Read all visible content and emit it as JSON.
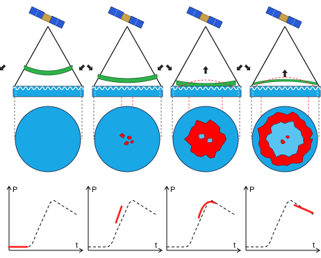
{
  "colors": {
    "water": "#1aa7e6",
    "water_edge": "#1f3b5a",
    "water_light": "#58c4f2",
    "ring": "#2db34a",
    "ring_edge": "#1f5f2a",
    "spread": "#ff0000",
    "spread_edge": "#8a0000",
    "curve": "#000000",
    "curve_highlight": "#ff1a1a",
    "guide": "#333333",
    "bulge": "#ff2020",
    "satellite_panel": "#2a5bd7",
    "satellite_body": "#c8a24a"
  },
  "icons": {
    "satellite": "satellite-icon",
    "arrow_out": "arrow-diagonal-icon",
    "arrow_up": "arrow-up-icon"
  },
  "panels": [
    {
      "id": "stage-1",
      "ring_curve": "down",
      "arrow_up": false,
      "blob_level": 0,
      "highlight": "start"
    },
    {
      "id": "stage-2",
      "ring_curve": "down-flat",
      "arrow_up": false,
      "blob_level": 1,
      "highlight": "rise"
    },
    {
      "id": "stage-3",
      "ring_curve": "flat",
      "arrow_up": true,
      "blob_level": 2,
      "highlight": "peak"
    },
    {
      "id": "stage-4",
      "ring_curve": "up",
      "arrow_up": true,
      "blob_level": 3,
      "highlight": "decline"
    }
  ],
  "graph": {
    "y_axis_label": "P",
    "x_axis_label": "t"
  }
}
